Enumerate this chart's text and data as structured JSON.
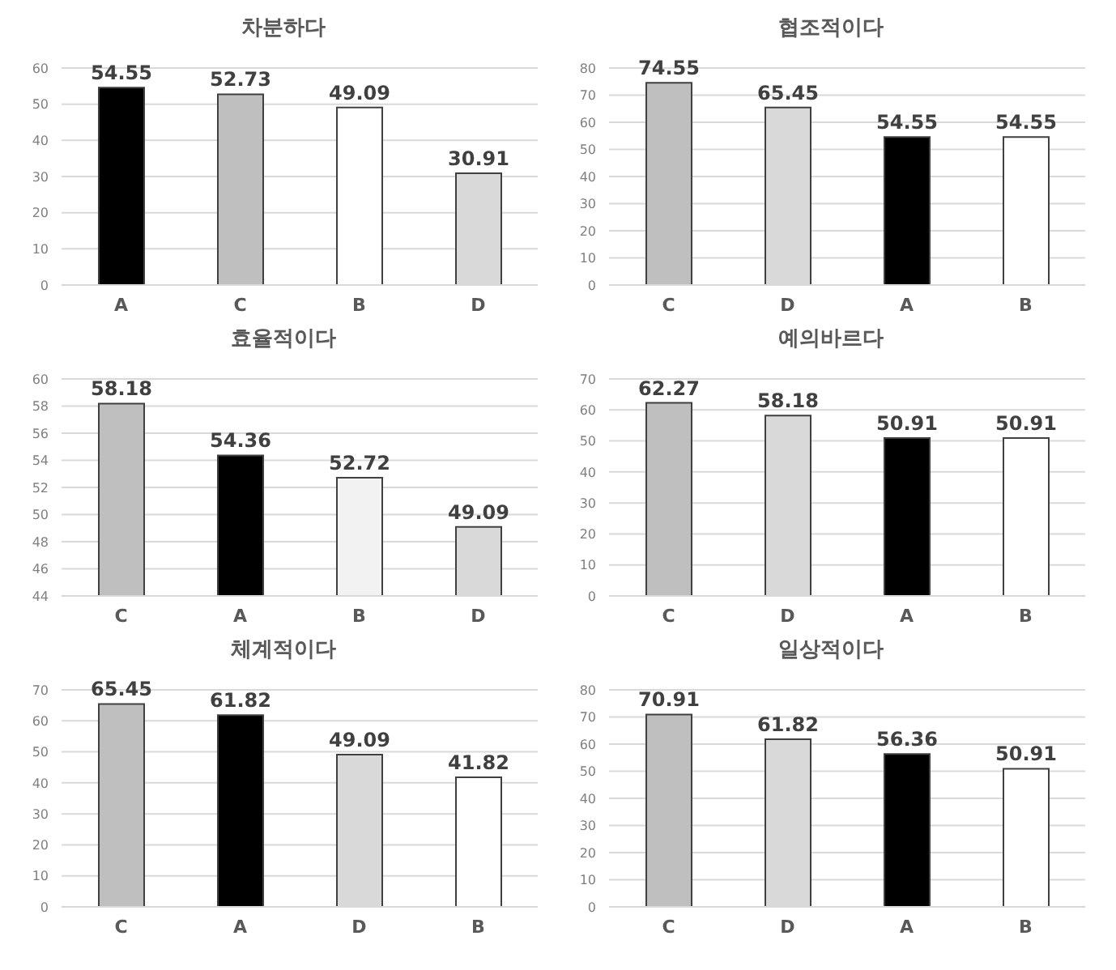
{
  "chart_data": [
    {
      "type": "bar",
      "title": "차분하다",
      "categories": [
        "A",
        "C",
        "B",
        "D"
      ],
      "values": [
        54.55,
        52.73,
        49.09,
        30.91
      ],
      "colors": [
        "#000000",
        "#bfbfbf",
        "#ffffff",
        "#d9d9d9"
      ],
      "ylim": [
        0,
        60
      ],
      "yticks": [
        0,
        10,
        20,
        30,
        40,
        50,
        60
      ],
      "grid": "y",
      "data_labels": true
    },
    {
      "type": "bar",
      "title": "협조적이다",
      "categories": [
        "C",
        "D",
        "A",
        "B"
      ],
      "values": [
        74.55,
        65.45,
        54.55,
        54.55
      ],
      "colors": [
        "#bfbfbf",
        "#d9d9d9",
        "#000000",
        "#ffffff"
      ],
      "ylim": [
        0,
        80
      ],
      "yticks": [
        0,
        10,
        20,
        30,
        40,
        50,
        60,
        70,
        80
      ],
      "grid": "y",
      "data_labels": true
    },
    {
      "type": "bar",
      "title": "효율적이다",
      "categories": [
        "C",
        "A",
        "B",
        "D"
      ],
      "values": [
        58.18,
        54.36,
        52.72,
        49.09
      ],
      "colors": [
        "#bfbfbf",
        "#000000",
        "#f2f2f2",
        "#d9d9d9"
      ],
      "ylim": [
        44,
        60
      ],
      "yticks": [
        44,
        46,
        48,
        50,
        52,
        54,
        56,
        58,
        60
      ],
      "grid": "y",
      "data_labels": true
    },
    {
      "type": "bar",
      "title": "예의바르다",
      "categories": [
        "C",
        "D",
        "A",
        "B"
      ],
      "values": [
        62.27,
        58.18,
        50.91,
        50.91
      ],
      "colors": [
        "#bfbfbf",
        "#d9d9d9",
        "#000000",
        "#ffffff"
      ],
      "ylim": [
        0,
        70
      ],
      "yticks": [
        0,
        10,
        20,
        30,
        40,
        50,
        60,
        70
      ],
      "grid": "y",
      "data_labels": true
    },
    {
      "type": "bar",
      "title": "체계적이다",
      "categories": [
        "C",
        "A",
        "D",
        "B"
      ],
      "values": [
        65.45,
        61.82,
        49.09,
        41.82
      ],
      "colors": [
        "#bfbfbf",
        "#000000",
        "#d9d9d9",
        "#ffffff"
      ],
      "ylim": [
        0,
        70
      ],
      "yticks": [
        0,
        10,
        20,
        30,
        40,
        50,
        60,
        70
      ],
      "grid": "y",
      "data_labels": true
    },
    {
      "type": "bar",
      "title": "일상적이다",
      "categories": [
        "C",
        "D",
        "A",
        "B"
      ],
      "values": [
        70.91,
        61.82,
        56.36,
        50.91
      ],
      "colors": [
        "#bfbfbf",
        "#d9d9d9",
        "#000000",
        "#ffffff"
      ],
      "ylim": [
        0,
        80
      ],
      "yticks": [
        0,
        10,
        20,
        30,
        40,
        50,
        60,
        70,
        80
      ],
      "grid": "y",
      "data_labels": true
    }
  ]
}
